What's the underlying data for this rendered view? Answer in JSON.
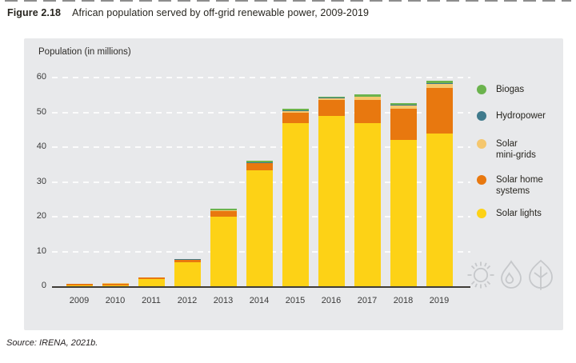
{
  "page": {
    "figure_label": "Figure 2.18",
    "figure_title": "African population served by off-grid renewable power, 2009-2019",
    "source": "Source: IRENA, 2021b."
  },
  "panel": {
    "axis_title": "Population (in millions)"
  },
  "legend": {
    "items": [
      {
        "label": "Biogas",
        "color": "#6bb34d"
      },
      {
        "label": "Hydropower",
        "color": "#3f7a8c"
      },
      {
        "label": "Solar\nmini-grids",
        "color": "#f5c76e"
      },
      {
        "label": "Solar home\nsystems",
        "color": "#e8780f"
      },
      {
        "label": "Solar lights",
        "color": "#fdd216"
      }
    ]
  },
  "icons": {
    "names": [
      "sun-icon",
      "water-drop-icon",
      "leaf-icon"
    ],
    "color": "#c6c8cb"
  },
  "chart_data": {
    "type": "bar",
    "stacked": true,
    "title": "African population served by off-grid renewable power, 2009-2019",
    "ylabel": "Population (in millions)",
    "xlabel": "",
    "categories": [
      "2009",
      "2010",
      "2011",
      "2012",
      "2013",
      "2014",
      "2015",
      "2016",
      "2017",
      "2018",
      "2019"
    ],
    "series": [
      {
        "name": "Solar lights",
        "color": "#fdd216",
        "values": [
          0.2,
          0.3,
          2.0,
          6.8,
          20.0,
          33.3,
          47.0,
          49.0,
          47.0,
          42.0,
          44.0
        ]
      },
      {
        "name": "Solar home systems",
        "color": "#e8780f",
        "values": [
          0.5,
          0.5,
          0.5,
          0.8,
          1.6,
          2.0,
          3.0,
          4.5,
          6.5,
          9.0,
          13.0
        ]
      },
      {
        "name": "Solar mini-grids",
        "color": "#f5c76e",
        "values": [
          0.05,
          0.05,
          0.05,
          0.1,
          0.2,
          0.2,
          0.4,
          0.5,
          0.9,
          1.0,
          1.2
        ]
      },
      {
        "name": "Hydropower",
        "color": "#3f7a8c",
        "values": [
          0.02,
          0.02,
          0.02,
          0.05,
          0.1,
          0.1,
          0.2,
          0.2,
          0.2,
          0.2,
          0.3
        ]
      },
      {
        "name": "Biogas",
        "color": "#6bb34d",
        "values": [
          0.03,
          0.03,
          0.03,
          0.15,
          0.3,
          0.4,
          0.4,
          0.4,
          0.5,
          0.5,
          0.6
        ]
      }
    ],
    "totals": [
      0.8,
      0.9,
      2.6,
      7.9,
      22.2,
      36.0,
      51.0,
      54.6,
      55.1,
      52.7,
      59.1
    ],
    "ylim": [
      0,
      60
    ],
    "yticks": [
      0,
      10,
      20,
      30,
      40,
      50,
      60
    ],
    "grid": "dashed-white-horizontal",
    "legend_position": "right"
  }
}
